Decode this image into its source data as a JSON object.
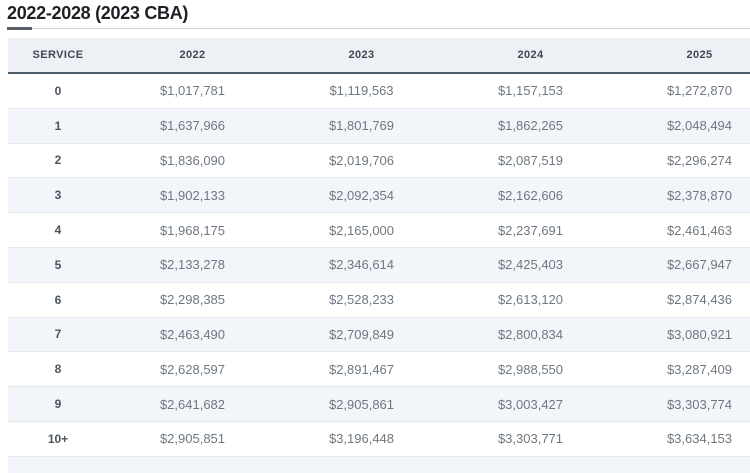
{
  "title": "2022-2028 (2023 CBA)",
  "chart_data": {
    "type": "table",
    "title": "2022-2028 (2023 CBA)",
    "columns": [
      "SERVICE",
      "2022",
      "2023",
      "2024",
      "2025"
    ],
    "rows": [
      {
        "service": "0",
        "values": [
          "$1,017,781",
          "$1,119,563",
          "$1,157,153",
          "$1,272,870"
        ]
      },
      {
        "service": "1",
        "values": [
          "$1,637,966",
          "$1,801,769",
          "$1,862,265",
          "$2,048,494"
        ]
      },
      {
        "service": "2",
        "values": [
          "$1,836,090",
          "$2,019,706",
          "$2,087,519",
          "$2,296,274"
        ]
      },
      {
        "service": "3",
        "values": [
          "$1,902,133",
          "$2,092,354",
          "$2,162,606",
          "$2,378,870"
        ]
      },
      {
        "service": "4",
        "values": [
          "$1,968,175",
          "$2,165,000",
          "$2,237,691",
          "$2,461,463"
        ]
      },
      {
        "service": "5",
        "values": [
          "$2,133,278",
          "$2,346,614",
          "$2,425,403",
          "$2,667,947"
        ]
      },
      {
        "service": "6",
        "values": [
          "$2,298,385",
          "$2,528,233",
          "$2,613,120",
          "$2,874,436"
        ]
      },
      {
        "service": "7",
        "values": [
          "$2,463,490",
          "$2,709,849",
          "$2,800,834",
          "$3,080,921"
        ]
      },
      {
        "service": "8",
        "values": [
          "$2,628,597",
          "$2,891,467",
          "$2,988,550",
          "$3,287,409"
        ]
      },
      {
        "service": "9",
        "values": [
          "$2,641,682",
          "$2,905,861",
          "$3,003,427",
          "$3,303,774"
        ]
      },
      {
        "service": "10+",
        "values": [
          "$2,905,851",
          "$3,196,448",
          "$3,303,771",
          "$3,634,153"
        ]
      }
    ]
  },
  "colors": {
    "header_bg": "#edf1f6",
    "stripe_bg": "#f2f5f9",
    "header_border": "#4d5a67",
    "row_border": "#e5e9ed",
    "value_text": "#6e7881",
    "service_text": "#4a5560",
    "title_text": "#1d2125"
  }
}
